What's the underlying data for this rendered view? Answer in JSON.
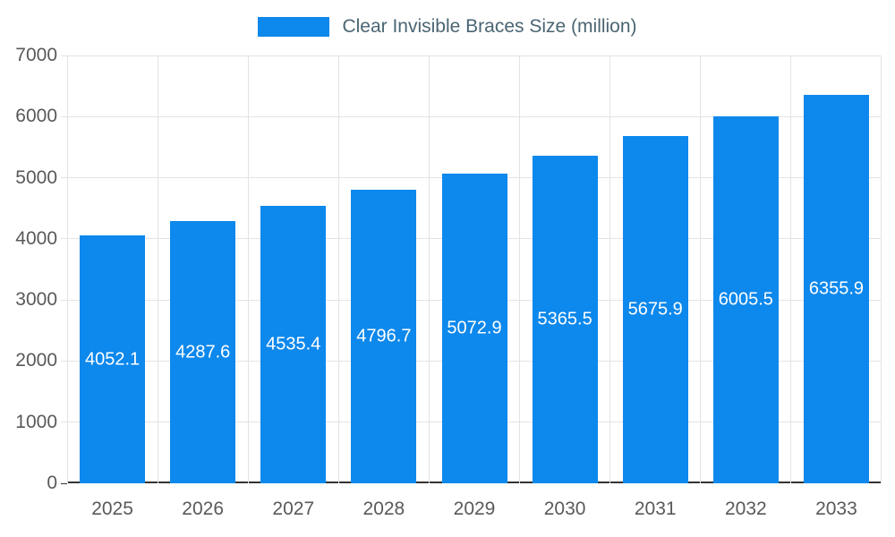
{
  "chart_data": {
    "type": "bar",
    "title": "Clear Invisible Braces Size (million)",
    "categories": [
      "2025",
      "2026",
      "2027",
      "2028",
      "2029",
      "2030",
      "2031",
      "2032",
      "2033"
    ],
    "values": [
      4052.1,
      4287.6,
      4535.4,
      4796.7,
      5072.9,
      5365.5,
      5675.9,
      6005.5,
      6355.9
    ],
    "xlabel": "",
    "ylabel": "",
    "ylim": [
      0,
      7000
    ],
    "ytick_step": 1000,
    "grid": true,
    "legend_position": "top",
    "value_labels_position": "inside-center",
    "colors": {
      "bar": "#0d88ec",
      "grid": "#e3e3e3",
      "axis_line": "#333333",
      "tick_label": "#58595b",
      "value_label": "#ffffff",
      "legend_text": "#4a6572"
    }
  }
}
